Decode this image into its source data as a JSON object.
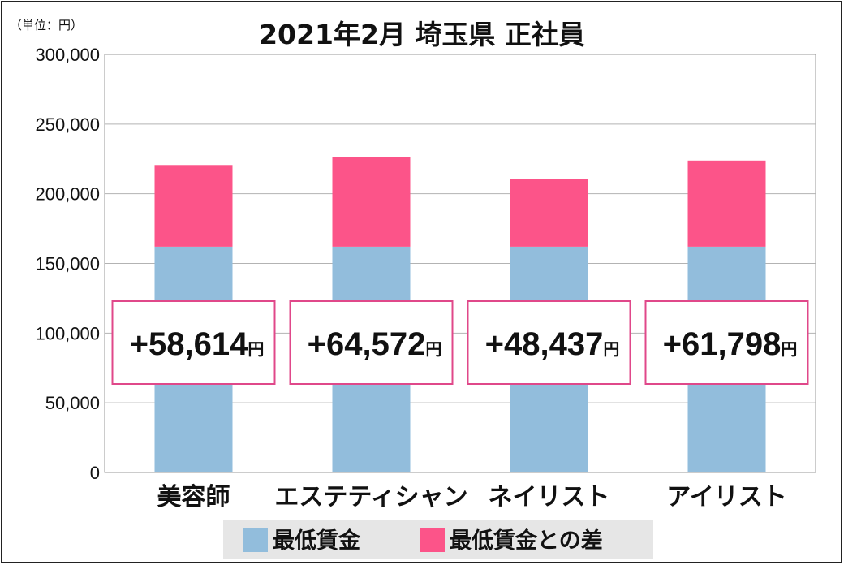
{
  "unit_label": "（単位：円）",
  "chart_data": {
    "type": "bar",
    "stacked": true,
    "title": "2021年2月 埼玉県 正社員",
    "categories": [
      "美容師",
      "エステティシャン",
      "ネイリスト",
      "アイリスト"
    ],
    "series": [
      {
        "name": "最低賃金",
        "values": [
          162000,
          162000,
          162000,
          162000
        ],
        "color": "#92bddc"
      },
      {
        "name": "最低賃金との差",
        "values": [
          58614,
          64572,
          48437,
          61798
        ],
        "color": "#fc5489"
      }
    ],
    "difference_labels": [
      "+58,614",
      "+64,572",
      "+48,437",
      "+61,798"
    ],
    "difference_suffix": "円",
    "ylim": [
      0,
      300000
    ],
    "yticks": [
      0,
      50000,
      100000,
      150000,
      200000,
      250000,
      300000
    ],
    "ytick_labels": [
      "0",
      "50,000",
      "100,000",
      "150,000",
      "200,000",
      "250,000",
      "300,000"
    ],
    "grid": true,
    "legend_position": "bottom"
  }
}
